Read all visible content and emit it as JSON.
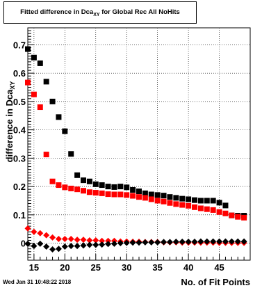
{
  "title": {
    "prefix": "Fitted difference in Dca",
    "sub": "XY",
    "suffix": " for Global Rec All NoHits"
  },
  "footer": {
    "date": "Wed Jan 31 10:48:22 2018"
  },
  "chart_data": {
    "type": "scatter",
    "title": "Fitted difference in DcaXY for Global Rec All NoHits",
    "xlabel": "No. of Fit Points",
    "ylabel": "difference in Dca",
    "ylabel_sub": "XY",
    "xlim": [
      14,
      50
    ],
    "ylim": [
      -0.06,
      0.76
    ],
    "xticks": [
      15,
      20,
      25,
      30,
      35,
      40,
      45
    ],
    "yticks": [
      0,
      0.1,
      0.2,
      0.3,
      0.4,
      0.5,
      0.6,
      0.7
    ],
    "grid": true,
    "legend": "none",
    "series": [
      {
        "color": "#000000",
        "marker": "square",
        "x": [
          14,
          15,
          16,
          17,
          18,
          19,
          20,
          21,
          22,
          23,
          24,
          25,
          26,
          27,
          28,
          29,
          30,
          31,
          32,
          33,
          34,
          35,
          36,
          37,
          38,
          39,
          40,
          41,
          42,
          43,
          44,
          45,
          46,
          47,
          48,
          49
        ],
        "y": [
          0.685,
          0.655,
          0.635,
          0.57,
          0.5,
          0.445,
          0.395,
          0.315,
          0.24,
          0.222,
          0.218,
          0.208,
          0.205,
          0.2,
          0.198,
          0.2,
          0.197,
          0.188,
          0.183,
          0.176,
          0.172,
          0.17,
          0.168,
          0.163,
          0.16,
          0.157,
          0.155,
          0.152,
          0.15,
          0.15,
          0.15,
          0.143,
          0.133,
          0.098,
          0.097,
          0.097
        ]
      },
      {
        "color": "#ff0000",
        "marker": "square",
        "x": [
          14,
          15,
          16,
          17,
          18,
          19,
          20,
          21,
          22,
          23,
          24,
          25,
          26,
          27,
          28,
          29,
          30,
          31,
          32,
          33,
          34,
          35,
          36,
          37,
          38,
          39,
          40,
          41,
          42,
          43,
          44,
          45,
          46,
          47,
          48,
          49
        ],
        "y": [
          0.567,
          0.525,
          0.48,
          0.313,
          0.218,
          0.205,
          0.197,
          0.193,
          0.19,
          0.185,
          0.18,
          0.178,
          0.176,
          0.173,
          0.172,
          0.172,
          0.17,
          0.167,
          0.163,
          0.16,
          0.155,
          0.15,
          0.147,
          0.142,
          0.138,
          0.135,
          0.132,
          0.127,
          0.123,
          0.12,
          0.117,
          0.11,
          0.105,
          0.098,
          0.093,
          0.09
        ]
      },
      {
        "color": "#ff0000",
        "marker": "diamond",
        "x": [
          14,
          15,
          16,
          17,
          18,
          19,
          20,
          21,
          22,
          23,
          24,
          25,
          26,
          27,
          28,
          29,
          30,
          31,
          32,
          33,
          34,
          35,
          36,
          37,
          38,
          39,
          40,
          41,
          42,
          43,
          44,
          45,
          46,
          47,
          48,
          49
        ],
        "y": [
          0.052,
          0.04,
          0.035,
          0.028,
          0.02,
          0.015,
          0.015,
          0.015,
          0.012,
          0.012,
          0.01,
          0.01,
          0.008,
          0.008,
          0.008,
          0.006,
          0.006,
          0.005,
          0.005,
          0.004,
          0.004,
          0.004,
          0.003,
          0.003,
          0.003,
          0.002,
          0.002,
          0.002,
          0.002,
          0.002,
          0.002,
          0.001,
          0.001,
          0.001,
          0.001,
          0.001
        ]
      },
      {
        "color": "#000000",
        "marker": "diamond",
        "x": [
          14,
          15,
          16,
          17,
          18,
          19,
          20,
          21,
          22,
          23,
          24,
          25,
          26,
          27,
          28,
          29,
          30,
          31,
          32,
          33,
          34,
          35,
          36,
          37,
          38,
          39,
          40,
          41,
          42,
          43,
          44,
          45,
          46,
          47,
          48,
          49
        ],
        "y": [
          -0.002,
          -0.01,
          -0.002,
          -0.012,
          -0.022,
          -0.02,
          -0.012,
          -0.01,
          -0.01,
          -0.008,
          -0.006,
          -0.006,
          -0.005,
          -0.003,
          -0.002,
          0.0,
          0.001,
          0.002,
          0.002,
          0.003,
          0.003,
          0.003,
          0.004,
          0.004,
          0.005,
          0.005,
          0.005,
          0.005,
          0.006,
          0.006,
          0.006,
          0.006,
          0.006,
          0.006,
          0.006,
          0.006
        ]
      }
    ]
  }
}
